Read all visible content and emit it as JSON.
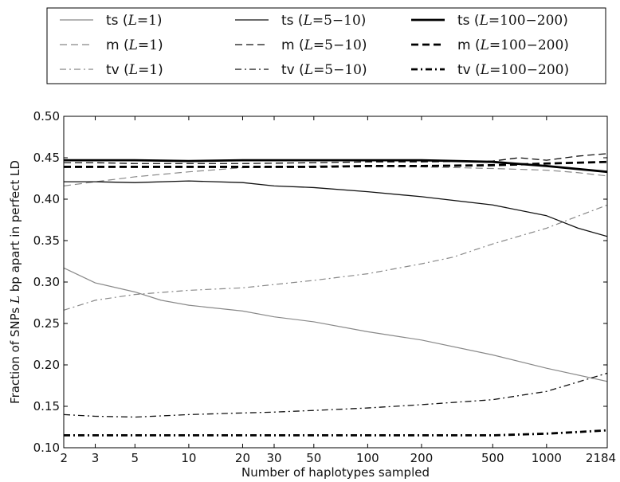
{
  "chart_data": {
    "type": "line",
    "xlabel": "Number of haplotypes sampled",
    "ylabel": "Fraction of SNPs L bp apart in perfect LD",
    "ylabel_parts": [
      "Fraction of SNPs ",
      "L",
      " bp apart in perfect LD"
    ],
    "xscale": "log",
    "xlim": [
      2,
      2184
    ],
    "ylim": [
      0.1,
      0.5
    ],
    "xticks": [
      2,
      3,
      5,
      10,
      20,
      30,
      50,
      100,
      200,
      500,
      1000,
      2184
    ],
    "xtick_labels": [
      "2",
      "3",
      "5",
      "10",
      "20",
      "30",
      "50",
      "100",
      "200",
      "500",
      "1000",
      "2184"
    ],
    "yticks": [
      0.1,
      0.15,
      0.2,
      0.25,
      0.3,
      0.35,
      0.4,
      0.45,
      0.5
    ],
    "ytick_labels": [
      "0.10",
      "0.15",
      "0.20",
      "0.25",
      "0.30",
      "0.35",
      "0.40",
      "0.45",
      "0.50"
    ],
    "grid": false,
    "legend_position": "top",
    "series": [
      {
        "name": "ts (L=1)",
        "label_prefix": "ts",
        "label_L": "1",
        "color": "#888888",
        "width": 1.2,
        "dash": "solid",
        "x": [
          2,
          3,
          5,
          7,
          10,
          20,
          30,
          50,
          100,
          200,
          500,
          1000,
          2184
        ],
        "y": [
          0.317,
          0.299,
          0.288,
          0.278,
          0.272,
          0.265,
          0.258,
          0.252,
          0.24,
          0.23,
          0.212,
          0.196,
          0.18
        ]
      },
      {
        "name": "m (L=1)",
        "label_prefix": "m",
        "label_L": "1",
        "color": "#888888",
        "width": 1.2,
        "dash": "dashed",
        "x": [
          2,
          3,
          5,
          10,
          20,
          50,
          100,
          200,
          500,
          1000,
          1500,
          2184
        ],
        "y": [
          0.416,
          0.421,
          0.427,
          0.433,
          0.438,
          0.44,
          0.44,
          0.439,
          0.437,
          0.435,
          0.432,
          0.428
        ]
      },
      {
        "name": "tv (L=1)",
        "label_prefix": "tv",
        "label_L": "1",
        "color": "#888888",
        "width": 1.2,
        "dash": "dashdot",
        "x": [
          2,
          3,
          5,
          10,
          20,
          30,
          50,
          100,
          200,
          300,
          500,
          1000,
          2184
        ],
        "y": [
          0.266,
          0.278,
          0.285,
          0.29,
          0.293,
          0.297,
          0.302,
          0.31,
          0.322,
          0.33,
          0.346,
          0.365,
          0.393
        ]
      },
      {
        "name": "ts (L=5-10)",
        "label_prefix": "ts",
        "label_L": "5−10",
        "color": "#111111",
        "width": 1.3,
        "dash": "solid",
        "x": [
          2,
          3,
          5,
          10,
          20,
          30,
          50,
          100,
          200,
          500,
          1000,
          1500,
          2184
        ],
        "y": [
          0.421,
          0.421,
          0.42,
          0.422,
          0.42,
          0.416,
          0.414,
          0.409,
          0.403,
          0.393,
          0.38,
          0.365,
          0.355
        ]
      },
      {
        "name": "m (L=5-10)",
        "label_prefix": "m",
        "label_L": "5−10",
        "color": "#111111",
        "width": 1.3,
        "dash": "dashed",
        "x": [
          2,
          3,
          5,
          10,
          20,
          50,
          100,
          200,
          500,
          700,
          1000,
          1500,
          2184
        ],
        "y": [
          0.444,
          0.444,
          0.443,
          0.443,
          0.443,
          0.444,
          0.445,
          0.445,
          0.446,
          0.45,
          0.447,
          0.452,
          0.455
        ]
      },
      {
        "name": "tv (L=5-10)",
        "label_prefix": "tv",
        "label_L": "5−10",
        "color": "#111111",
        "width": 1.3,
        "dash": "dashdot",
        "x": [
          2,
          3,
          5,
          10,
          20,
          30,
          50,
          100,
          200,
          500,
          1000,
          2184
        ],
        "y": [
          0.14,
          0.138,
          0.137,
          0.14,
          0.142,
          0.143,
          0.145,
          0.148,
          0.152,
          0.158,
          0.168,
          0.19
        ]
      },
      {
        "name": "ts (L=100-200)",
        "label_prefix": "ts",
        "label_L": "100−200",
        "color": "#000000",
        "width": 2.8,
        "dash": "solid",
        "x": [
          2,
          3,
          5,
          10,
          20,
          50,
          100,
          200,
          500,
          1000,
          2184
        ],
        "y": [
          0.447,
          0.447,
          0.447,
          0.446,
          0.447,
          0.447,
          0.447,
          0.447,
          0.445,
          0.44,
          0.433
        ]
      },
      {
        "name": "m (L=100-200)",
        "label_prefix": "m",
        "label_L": "100−200",
        "color": "#000000",
        "width": 2.8,
        "dash": "dashed",
        "x": [
          2,
          3,
          5,
          10,
          20,
          50,
          100,
          200,
          500,
          1000,
          2184
        ],
        "y": [
          0.439,
          0.439,
          0.439,
          0.439,
          0.439,
          0.439,
          0.44,
          0.44,
          0.441,
          0.443,
          0.445
        ]
      },
      {
        "name": "tv (L=100-200)",
        "label_prefix": "tv",
        "label_L": "100−200",
        "color": "#000000",
        "width": 2.8,
        "dash": "dashdot",
        "x": [
          2,
          3,
          5,
          10,
          20,
          50,
          100,
          200,
          500,
          1000,
          1500,
          2184
        ],
        "y": [
          0.115,
          0.115,
          0.115,
          0.115,
          0.115,
          0.115,
          0.115,
          0.115,
          0.115,
          0.117,
          0.119,
          0.121
        ]
      }
    ]
  }
}
